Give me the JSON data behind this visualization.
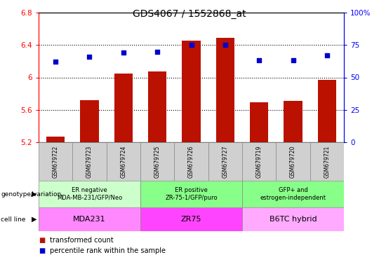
{
  "title": "GDS4067 / 1552868_at",
  "samples": [
    "GSM679722",
    "GSM679723",
    "GSM679724",
    "GSM679725",
    "GSM679726",
    "GSM679727",
    "GSM679719",
    "GSM679720",
    "GSM679721"
  ],
  "bar_values": [
    5.27,
    5.72,
    6.05,
    6.07,
    6.45,
    6.49,
    5.69,
    5.71,
    5.97
  ],
  "dot_values": [
    62,
    66,
    69,
    70,
    75,
    75,
    63,
    63,
    67
  ],
  "ylim": [
    5.2,
    6.8
  ],
  "y2lim": [
    0,
    100
  ],
  "yticks": [
    5.2,
    5.6,
    6.0,
    6.4,
    6.8
  ],
  "y2ticks": [
    0,
    25,
    50,
    75,
    100
  ],
  "bar_color": "#bb1100",
  "dot_color": "#0000cc",
  "background_color": "#ffffff",
  "genotype_groups": [
    {
      "label": "ER negative\nMDA-MB-231/GFP/Neo",
      "start": 0,
      "end": 3,
      "color": "#ccffcc"
    },
    {
      "label": "ER positive\nZR-75-1/GFP/puro",
      "start": 3,
      "end": 6,
      "color": "#88ff88"
    },
    {
      "label": "GFP+ and\nestrogen-independent",
      "start": 6,
      "end": 9,
      "color": "#88ff88"
    }
  ],
  "cellline_groups": [
    {
      "label": "MDA231",
      "start": 0,
      "end": 3,
      "color": "#ff88ff"
    },
    {
      "label": "ZR75",
      "start": 3,
      "end": 6,
      "color": "#ff44ff"
    },
    {
      "label": "B6TC hybrid",
      "start": 6,
      "end": 9,
      "color": "#ffaaff"
    }
  ],
  "legend_items": [
    {
      "color": "#bb1100",
      "label": "transformed count"
    },
    {
      "color": "#0000cc",
      "label": "percentile rank within the sample"
    }
  ],
  "xticklabel_bg": "#d0d0d0",
  "group_border_color": "#888888",
  "title_fontsize": 10,
  "tick_fontsize": 7.5,
  "label_fontsize": 6,
  "sample_fontsize": 5.5,
  "geno_fontsize": 6,
  "cell_fontsize": 8
}
